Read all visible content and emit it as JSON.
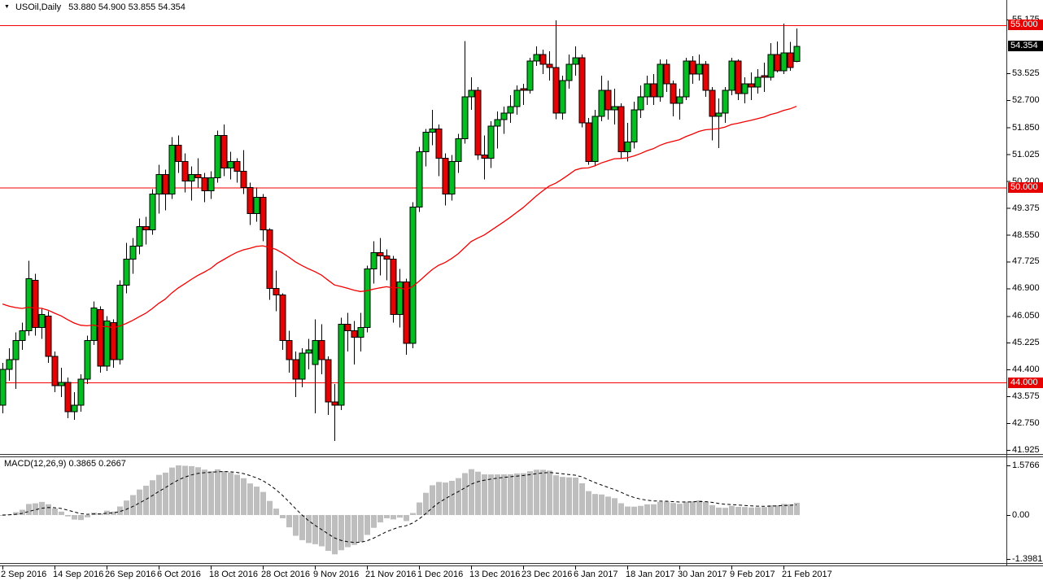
{
  "header": {
    "symbol": "USOil,Daily",
    "ohlc": "53.880 54.900 53.855 54.354",
    "dropdown_icon": "triangle-down"
  },
  "colors": {
    "background": "#ffffff",
    "bull_candle": "#00c020",
    "bear_candle": "#ea0000",
    "candle_outline": "#000000",
    "level_line": "#f40000",
    "moving_average": "#f40000",
    "macd_histogram": "#bebebe",
    "macd_signal": "#000000",
    "badge_red": "#e60000",
    "badge_black": "#000000",
    "separator": "#333333",
    "axis_text": "#000000"
  },
  "chart_data": {
    "type": "candlestick",
    "title": "USOil,Daily 53.880 54.900 53.855 54.354",
    "symbol": "USOil",
    "timeframe": "Daily",
    "grid": false,
    "price_axis": {
      "side": "right",
      "max": 55.175,
      "min": 41.925,
      "ticks": [
        "55.175",
        "53.525",
        "52.700",
        "51.850",
        "51.025",
        "50.200",
        "49.375",
        "48.550",
        "47.725",
        "46.900",
        "46.050",
        "45.225",
        "44.400",
        "43.575",
        "42.750",
        "41.925"
      ]
    },
    "horizontal_levels": [
      {
        "price": 55.0,
        "label": "55.000",
        "style": "red-line"
      },
      {
        "price": 50.0,
        "label": "50.000",
        "style": "red-line"
      },
      {
        "price": 44.0,
        "label": "44.000",
        "style": "red-line"
      }
    ],
    "price_badges": [
      {
        "text": "55.000",
        "price": 55.0,
        "bg": "#e60000"
      },
      {
        "text": "54.354",
        "price": 54.354,
        "bg": "#000000"
      },
      {
        "text": "50.000",
        "price": 50.0,
        "bg": "#e60000"
      },
      {
        "text": "44.000",
        "price": 44.0,
        "bg": "#e60000"
      }
    ],
    "x_axis": {
      "labels": [
        {
          "text": "2 Sep 2016",
          "i": 0
        },
        {
          "text": "14 Sep 2016",
          "i": 8
        },
        {
          "text": "26 Sep 2016",
          "i": 16
        },
        {
          "text": "6 Oct 2016",
          "i": 24
        },
        {
          "text": "18 Oct 2016",
          "i": 32
        },
        {
          "text": "28 Oct 2016",
          "i": 40
        },
        {
          "text": "9 Nov 2016",
          "i": 48
        },
        {
          "text": "21 Nov 2016",
          "i": 56
        },
        {
          "text": "1 Dec 2016",
          "i": 64
        },
        {
          "text": "13 Dec 2016",
          "i": 72
        },
        {
          "text": "23 Dec 2016",
          "i": 80
        },
        {
          "text": "6 Jan 2017",
          "i": 88
        },
        {
          "text": "18 Jan 2017",
          "i": 96
        },
        {
          "text": "30 Jan 2017",
          "i": 104
        },
        {
          "text": "9 Feb 2017",
          "i": 112
        },
        {
          "text": "21 Feb 2017",
          "i": 120
        }
      ]
    },
    "candles_ohlc": [
      [
        43.3,
        44.6,
        43.05,
        44.4
      ],
      [
        44.4,
        45.05,
        44.05,
        44.7
      ],
      [
        44.7,
        45.55,
        43.8,
        45.3
      ],
      [
        45.3,
        45.85,
        45.0,
        45.6
      ],
      [
        45.6,
        47.75,
        45.45,
        47.2
      ],
      [
        47.15,
        47.35,
        45.45,
        45.7
      ],
      [
        45.7,
        46.3,
        45.35,
        46.1
      ],
      [
        46.05,
        46.2,
        44.6,
        44.8
      ],
      [
        44.8,
        44.95,
        43.7,
        43.9
      ],
      [
        43.9,
        44.45,
        43.55,
        44.0
      ],
      [
        44.0,
        44.15,
        42.9,
        43.1
      ],
      [
        43.1,
        43.7,
        42.85,
        43.3
      ],
      [
        43.3,
        44.25,
        43.1,
        44.1
      ],
      [
        44.1,
        45.45,
        43.95,
        45.3
      ],
      [
        45.3,
        46.5,
        45.15,
        46.3
      ],
      [
        46.25,
        46.35,
        44.3,
        44.5
      ],
      [
        44.5,
        46.05,
        44.35,
        45.9
      ],
      [
        45.85,
        45.95,
        44.45,
        44.7
      ],
      [
        44.7,
        47.15,
        44.55,
        47.0
      ],
      [
        47.0,
        48.3,
        46.75,
        47.8
      ],
      [
        47.8,
        48.45,
        47.35,
        48.2
      ],
      [
        48.2,
        49.05,
        47.95,
        48.8
      ],
      [
        48.8,
        49.1,
        48.25,
        48.7
      ],
      [
        48.7,
        49.95,
        48.55,
        49.8
      ],
      [
        49.8,
        50.7,
        49.2,
        50.4
      ],
      [
        50.4,
        50.55,
        49.3,
        49.8
      ],
      [
        49.8,
        51.55,
        49.65,
        51.3
      ],
      [
        51.3,
        51.6,
        50.45,
        50.8
      ],
      [
        50.8,
        51.05,
        49.85,
        50.2
      ],
      [
        50.2,
        50.65,
        49.6,
        50.4
      ],
      [
        50.4,
        50.9,
        50.0,
        50.3
      ],
      [
        50.3,
        50.45,
        49.55,
        49.9
      ],
      [
        49.9,
        50.5,
        49.65,
        50.3
      ],
      [
        50.3,
        51.75,
        50.15,
        51.6
      ],
      [
        51.6,
        51.95,
        50.35,
        50.6
      ],
      [
        50.6,
        51.1,
        50.25,
        50.8
      ],
      [
        50.8,
        50.9,
        50.15,
        50.5
      ],
      [
        50.5,
        51.15,
        49.8,
        50.0
      ],
      [
        50.0,
        50.15,
        48.85,
        49.2
      ],
      [
        49.2,
        50.0,
        48.95,
        49.7
      ],
      [
        49.7,
        49.8,
        48.35,
        48.7
      ],
      [
        48.7,
        48.75,
        46.55,
        46.9
      ],
      [
        46.9,
        47.45,
        46.2,
        46.7
      ],
      [
        46.7,
        46.75,
        45.0,
        45.3
      ],
      [
        45.3,
        45.6,
        44.3,
        44.7
      ],
      [
        44.7,
        44.95,
        43.55,
        44.1
      ],
      [
        44.1,
        45.05,
        43.85,
        44.9
      ],
      [
        44.9,
        45.35,
        44.4,
        45.0
      ],
      [
        44.55,
        45.95,
        43.05,
        45.3
      ],
      [
        45.3,
        45.8,
        44.25,
        44.7
      ],
      [
        44.7,
        44.8,
        43.0,
        43.4
      ],
      [
        43.4,
        43.95,
        42.2,
        43.3
      ],
      [
        43.3,
        46.0,
        43.15,
        45.8
      ],
      [
        45.8,
        46.15,
        44.95,
        45.6
      ],
      [
        45.6,
        45.9,
        44.55,
        45.4
      ],
      [
        45.4,
        46.15,
        44.95,
        45.7
      ],
      [
        45.7,
        47.6,
        45.55,
        47.5
      ],
      [
        47.5,
        48.35,
        47.05,
        48.0
      ],
      [
        48.0,
        48.45,
        47.3,
        47.9
      ],
      [
        47.9,
        48.1,
        47.15,
        47.8
      ],
      [
        47.8,
        47.9,
        45.85,
        46.1
      ],
      [
        46.1,
        47.5,
        45.7,
        47.1
      ],
      [
        47.1,
        47.2,
        44.85,
        45.2
      ],
      [
        45.2,
        49.55,
        45.05,
        49.4
      ],
      [
        49.4,
        51.25,
        49.25,
        51.1
      ],
      [
        51.1,
        51.8,
        50.65,
        51.7
      ],
      [
        51.7,
        52.4,
        51.3,
        51.8
      ],
      [
        51.8,
        51.95,
        50.35,
        50.9
      ],
      [
        50.9,
        51.05,
        49.45,
        49.8
      ],
      [
        49.8,
        51.0,
        49.6,
        50.8
      ],
      [
        50.8,
        51.65,
        50.45,
        51.5
      ],
      [
        51.5,
        54.51,
        51.35,
        52.8
      ],
      [
        52.8,
        53.4,
        52.4,
        53.0
      ],
      [
        53.0,
        53.1,
        50.85,
        51.0
      ],
      [
        51.0,
        51.6,
        50.25,
        50.9
      ],
      [
        50.9,
        52.05,
        50.6,
        51.9
      ],
      [
        51.9,
        52.35,
        51.2,
        52.1
      ],
      [
        52.1,
        52.5,
        51.65,
        52.3
      ],
      [
        52.3,
        52.85,
        52.0,
        52.5
      ],
      [
        52.5,
        53.15,
        52.25,
        53.0
      ],
      [
        53.05,
        53.2,
        52.55,
        53.0
      ],
      [
        53.0,
        54.0,
        52.9,
        53.9
      ],
      [
        53.9,
        54.35,
        53.75,
        54.1
      ],
      [
        54.1,
        54.25,
        53.5,
        53.8
      ],
      [
        53.8,
        54.2,
        53.3,
        53.7
      ],
      [
        53.7,
        55.15,
        52.11,
        52.3
      ],
      [
        52.3,
        53.45,
        52.1,
        53.3
      ],
      [
        53.3,
        54.1,
        53.05,
        53.8
      ],
      [
        53.8,
        54.35,
        53.45,
        54.0
      ],
      [
        54.0,
        54.1,
        51.85,
        52.0
      ],
      [
        52.0,
        52.15,
        50.71,
        50.8
      ],
      [
        50.8,
        52.4,
        50.65,
        52.2
      ],
      [
        52.2,
        53.45,
        52.05,
        53.0
      ],
      [
        53.0,
        53.3,
        52.1,
        52.4
      ],
      [
        52.4,
        53.05,
        51.95,
        52.5
      ],
      [
        52.5,
        52.6,
        50.91,
        51.1
      ],
      [
        51.1,
        52.0,
        50.8,
        51.4
      ],
      [
        51.4,
        52.65,
        51.2,
        52.4
      ],
      [
        52.4,
        53.15,
        52.15,
        52.8
      ],
      [
        52.8,
        53.45,
        52.55,
        53.2
      ],
      [
        53.2,
        53.5,
        52.55,
        52.8
      ],
      [
        52.8,
        53.95,
        52.65,
        53.8
      ],
      [
        53.8,
        53.95,
        52.95,
        53.2
      ],
      [
        53.2,
        53.3,
        52.2,
        52.6
      ],
      [
        52.6,
        53.05,
        52.1,
        52.8
      ],
      [
        52.8,
        54.0,
        52.7,
        53.9
      ],
      [
        53.9,
        54.05,
        53.2,
        53.5
      ],
      [
        53.5,
        54.1,
        53.3,
        53.8
      ],
      [
        53.8,
        53.9,
        52.8,
        53.0
      ],
      [
        53.0,
        53.1,
        51.45,
        52.2
      ],
      [
        52.2,
        52.75,
        51.22,
        52.3
      ],
      [
        52.3,
        53.1,
        52.0,
        53.0
      ],
      [
        53.0,
        54.0,
        52.85,
        53.9
      ],
      [
        53.9,
        53.95,
        52.7,
        52.9
      ],
      [
        52.9,
        53.4,
        52.6,
        53.2
      ],
      [
        53.2,
        53.55,
        52.7,
        53.1
      ],
      [
        53.1,
        53.65,
        52.9,
        53.4
      ],
      [
        53.45,
        53.85,
        52.95,
        53.4
      ],
      [
        53.4,
        54.45,
        53.3,
        54.1
      ],
      [
        54.1,
        54.5,
        53.55,
        53.6
      ],
      [
        53.6,
        55.05,
        53.5,
        54.15
      ],
      [
        54.15,
        54.48,
        53.6,
        53.7
      ],
      [
        53.88,
        54.9,
        53.855,
        54.354
      ]
    ],
    "moving_average": {
      "type": "ema",
      "period": 50,
      "seed": 46.5
    },
    "macd": {
      "label": "MACD(12,26,9) 0.3865 0.2667",
      "fast": 12,
      "slow": 26,
      "signal": 9,
      "current_macd": "0.3865",
      "current_signal": "0.2667",
      "axis_ticks": [
        "1.5766",
        "0.00",
        "-1.3981"
      ],
      "max": 1.5766,
      "min": -1.3981
    }
  }
}
